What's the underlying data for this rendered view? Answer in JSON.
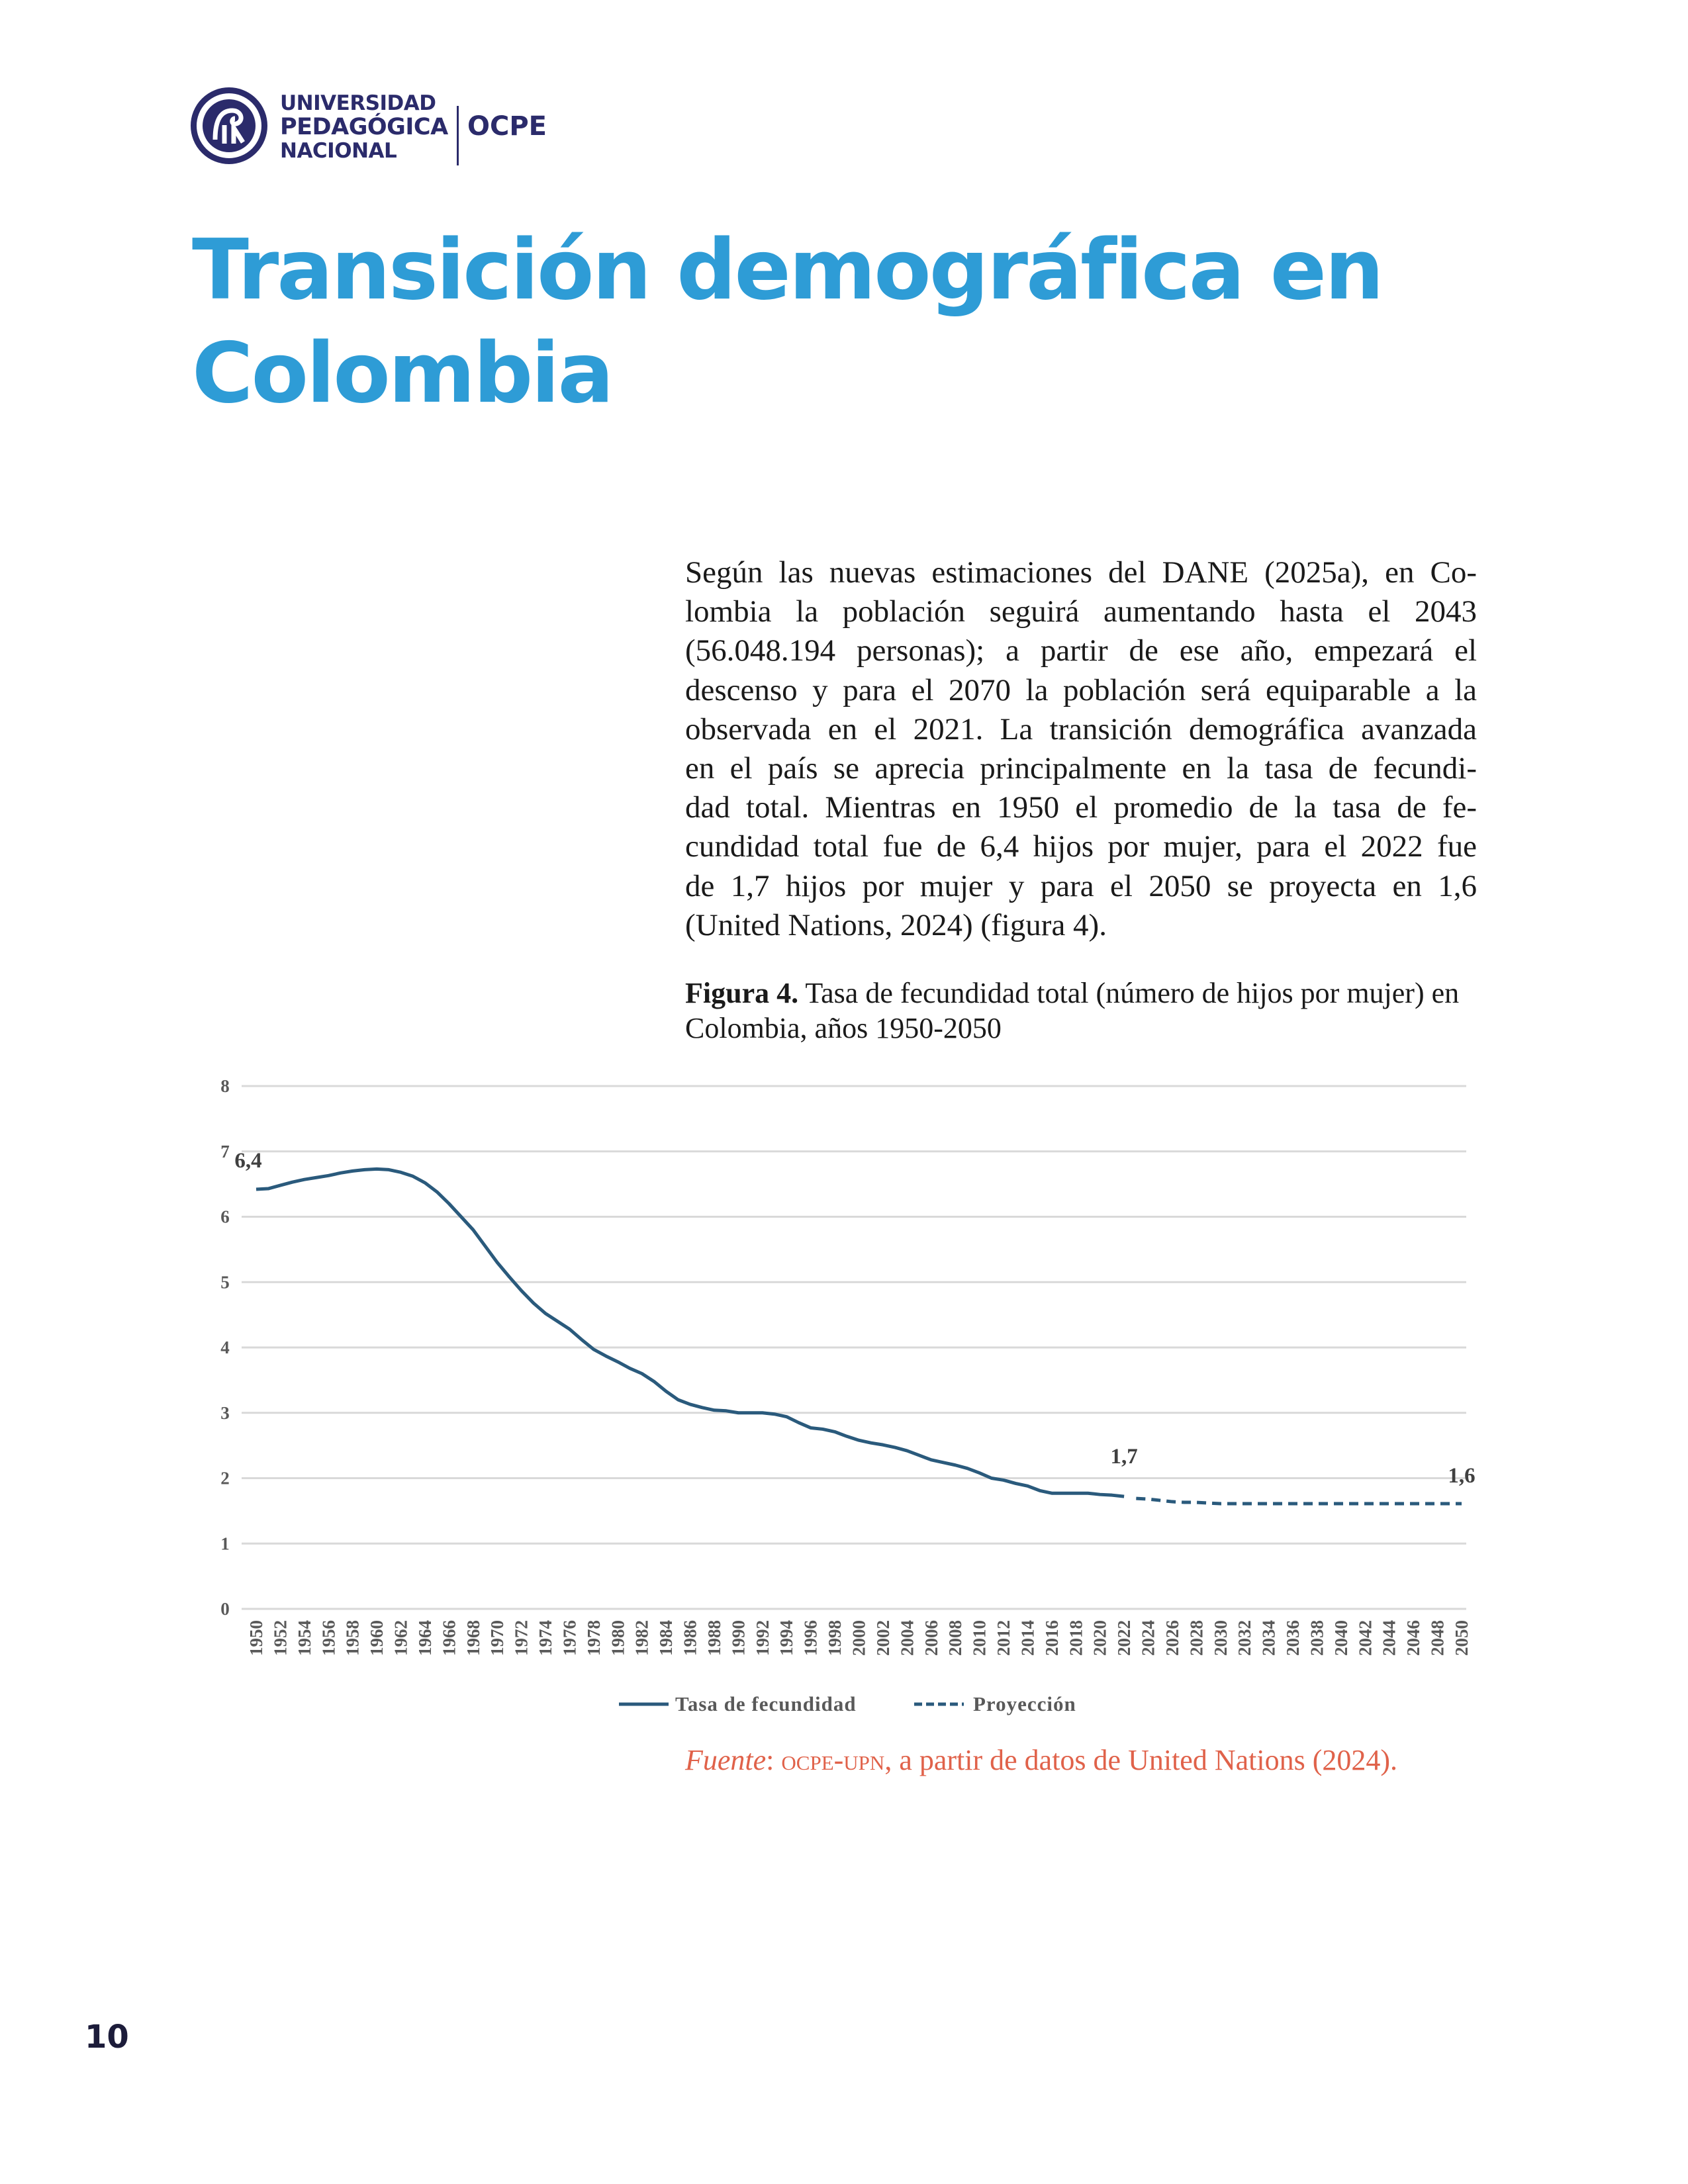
{
  "header": {
    "logo_lines": [
      "UNIVERSIDAD",
      "PEDAGÓGICA",
      "NACIONAL"
    ],
    "unit": "OCPE"
  },
  "title": "Transición demográfica en Colombia",
  "body": {
    "lines": [
      "Según las nuevas estimaciones del DANE (2025a), en Co-",
      "lombia la población seguirá aumentando hasta el 2043",
      "(56.048.194 personas); a partir de ese año, empezará el",
      "descenso y para el 2070 la población será equiparable a la",
      "observada en el 2021. La transición demográfica avanzada",
      "en el país se aprecia principalmente en la tasa de fecundi-",
      "dad total. Mientras en 1950 el promedio de la tasa de fe-",
      "cundidad total fue de 6,4 hijos por mujer, para el 2022 fue",
      "de 1,7 hijos por mujer y para el 2050 se proyecta en 1,6",
      "(United Nations, 2024) (figura 4)."
    ]
  },
  "figure": {
    "label": "Figura 4.",
    "caption": "Tasa de fecundidad total (número de hijos por mujer) en Colombia, años 1950-2050"
  },
  "chart_data": {
    "type": "line",
    "title": "",
    "xlabel": "",
    "ylabel": "",
    "ylim": [
      0,
      8
    ],
    "yticks": [
      "0",
      "1",
      "2",
      "3",
      "4",
      "5",
      "6",
      "7",
      "8"
    ],
    "xlim": [
      1950,
      2050
    ],
    "xtick_step": 2,
    "grid": "horizontal",
    "legend_position": "bottom",
    "color": "#2a5a7c",
    "series": [
      {
        "name": "Tasa de fecundidad",
        "style": "solid",
        "x": [
          1950,
          1951,
          1952,
          1953,
          1954,
          1955,
          1956,
          1957,
          1958,
          1959,
          1960,
          1961,
          1962,
          1963,
          1964,
          1965,
          1966,
          1967,
          1968,
          1969,
          1970,
          1971,
          1972,
          1973,
          1974,
          1975,
          1976,
          1977,
          1978,
          1979,
          1980,
          1981,
          1982,
          1983,
          1984,
          1985,
          1986,
          1987,
          1988,
          1989,
          1990,
          1991,
          1992,
          1993,
          1994,
          1995,
          1996,
          1997,
          1998,
          1999,
          2000,
          2001,
          2002,
          2003,
          2004,
          2005,
          2006,
          2007,
          2008,
          2009,
          2010,
          2011,
          2012,
          2013,
          2014,
          2015,
          2016,
          2017,
          2018,
          2019,
          2020,
          2021,
          2022
        ],
        "y": [
          6.42,
          6.43,
          6.48,
          6.53,
          6.57,
          6.6,
          6.63,
          6.67,
          6.7,
          6.72,
          6.73,
          6.72,
          6.68,
          6.62,
          6.52,
          6.38,
          6.2,
          6.0,
          5.8,
          5.55,
          5.3,
          5.08,
          4.87,
          4.68,
          4.52,
          4.4,
          4.28,
          4.12,
          3.97,
          3.87,
          3.78,
          3.68,
          3.6,
          3.48,
          3.33,
          3.2,
          3.13,
          3.08,
          3.04,
          3.03,
          3.0,
          3.0,
          3.0,
          2.98,
          2.94,
          2.85,
          2.77,
          2.75,
          2.71,
          2.64,
          2.58,
          2.54,
          2.51,
          2.47,
          2.42,
          2.35,
          2.28,
          2.24,
          2.2,
          2.15,
          2.08,
          2.0,
          1.97,
          1.92,
          1.88,
          1.81,
          1.77,
          1.77,
          1.77,
          1.77,
          1.75,
          1.74,
          1.72
        ]
      },
      {
        "name": "Proyección",
        "style": "dashed",
        "x": [
          2023,
          2024,
          2025,
          2026,
          2027,
          2028,
          2029,
          2030,
          2031,
          2032,
          2033,
          2034,
          2035,
          2036,
          2037,
          2038,
          2039,
          2040,
          2041,
          2042,
          2043,
          2044,
          2045,
          2046,
          2047,
          2048,
          2049,
          2050
        ],
        "y": [
          1.69,
          1.68,
          1.66,
          1.64,
          1.63,
          1.63,
          1.62,
          1.61,
          1.61,
          1.61,
          1.61,
          1.61,
          1.61,
          1.61,
          1.61,
          1.61,
          1.61,
          1.61,
          1.61,
          1.61,
          1.61,
          1.61,
          1.61,
          1.61,
          1.61,
          1.61,
          1.61,
          1.61
        ]
      }
    ],
    "annotations": [
      {
        "x": 1950,
        "y": 6.4,
        "text": "6,4"
      },
      {
        "x": 2022,
        "y": 1.7,
        "text": "1,7"
      },
      {
        "x": 2050,
        "y": 1.6,
        "text": "1,6"
      }
    ]
  },
  "source": {
    "label": "Fuente",
    "sep": ": ",
    "org": "ocpe-upn",
    "text": ", a partir de datos de United Nations (2024)."
  },
  "page_number": "10"
}
